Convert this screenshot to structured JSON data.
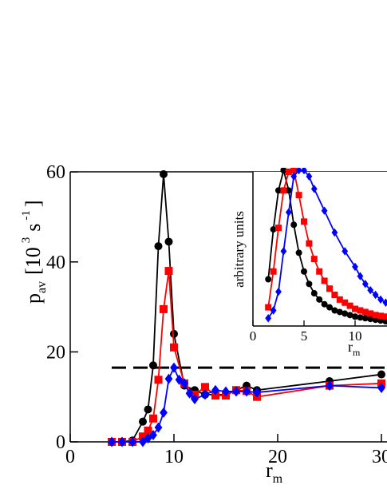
{
  "chart_data": [
    {
      "type": "line",
      "xlabel": "r",
      "xlabel_sub": "m",
      "ylabel": "p",
      "ylabel_sub": "av",
      "ylabel_unit": "[10",
      "ylabel_exp": "3",
      "ylabel_unit2": "s",
      "ylabel_exp2": "-1",
      "ylabel_close": "]",
      "xlim": [
        0,
        30
      ],
      "ylim": [
        0,
        60
      ],
      "xticks": [
        0,
        10,
        20,
        30
      ],
      "xtick_labels": [
        "0",
        "10",
        "20",
        "30"
      ],
      "yticks": [
        0,
        20,
        40,
        60
      ],
      "ytick_labels": [
        "0",
        "20",
        "40",
        "60"
      ],
      "reference_line": {
        "y": 16.5,
        "style": "dashed",
        "color": "#000000"
      },
      "series": [
        {
          "color": "#000000",
          "marker": "circle",
          "x": [
            4,
            5,
            6,
            7,
            7.5,
            8,
            8.5,
            9,
            9.5,
            10,
            11,
            12,
            13,
            14,
            15,
            16,
            17,
            18,
            25,
            30
          ],
          "y": [
            0,
            0,
            0.3,
            4.5,
            7.2,
            17,
            43.5,
            59.5,
            44.5,
            24,
            12.5,
            11.5,
            10.5,
            10.5,
            10.5,
            11.5,
            12.5,
            11.5,
            13.5,
            15
          ]
        },
        {
          "color": "#ff0000",
          "marker": "square",
          "x": [
            4,
            5,
            6,
            7,
            7.5,
            8,
            8.5,
            9,
            9.5,
            10,
            11,
            12,
            13,
            14,
            15,
            16,
            17,
            18,
            25,
            30
          ],
          "y": [
            0,
            0,
            0,
            1.2,
            2.5,
            5.2,
            13.8,
            29.5,
            38,
            21,
            13,
            10.5,
            12.2,
            10.3,
            10.3,
            11.5,
            11.3,
            10,
            12.5,
            13
          ]
        },
        {
          "color": "#0000ff",
          "marker": "diamond",
          "x": [
            4,
            5,
            6,
            7,
            7.5,
            8,
            8.5,
            9,
            9.5,
            10,
            10.5,
            11,
            11.5,
            12,
            13,
            14,
            15,
            16,
            17,
            18,
            25,
            30
          ],
          "y": [
            0,
            0,
            0,
            0,
            0.8,
            1.5,
            3.2,
            6.5,
            14,
            16.5,
            13.8,
            13,
            10.8,
            9.5,
            10.5,
            11.5,
            11.2,
            11.2,
            11.2,
            11,
            12.5,
            12
          ]
        }
      ]
    },
    {
      "type": "line",
      "xlabel": "r",
      "xlabel_sub": "m",
      "ylabel": "arbitrary units",
      "xlim": [
        0,
        14
      ],
      "ylim": [
        0,
        1
      ],
      "xticks": [
        0,
        5,
        10
      ],
      "xtick_labels": [
        "0",
        "5",
        "10"
      ],
      "series": [
        {
          "color": "#000000",
          "marker": "circle",
          "x": [
            1.5,
            2,
            2.5,
            3,
            3.5,
            4,
            4.5,
            5,
            5.5,
            6,
            6.5,
            7,
            7.5,
            8,
            8.5,
            9,
            9.5,
            10,
            10.5,
            11,
            11.5,
            12,
            12.5,
            13,
            13.5,
            14
          ],
          "y": [
            0.3,
            0.62,
            0.87,
            1.0,
            0.87,
            0.65,
            0.47,
            0.35,
            0.27,
            0.21,
            0.17,
            0.14,
            0.12,
            0.1,
            0.09,
            0.08,
            0.07,
            0.06,
            0.055,
            0.05,
            0.045,
            0.04,
            0.035,
            0.03,
            0.03,
            0.025
          ]
        },
        {
          "color": "#ff0000",
          "marker": "square",
          "x": [
            1.5,
            2,
            2.5,
            3,
            3.5,
            4,
            4.5,
            5,
            5.5,
            6,
            6.5,
            7,
            7.5,
            8,
            8.5,
            9,
            9.5,
            10,
            10.5,
            11,
            11.5,
            12,
            12.5,
            13,
            13.5,
            14
          ],
          "y": [
            0.12,
            0.35,
            0.63,
            0.87,
            0.99,
            1.0,
            0.84,
            0.67,
            0.53,
            0.43,
            0.35,
            0.29,
            0.24,
            0.2,
            0.17,
            0.15,
            0.13,
            0.11,
            0.1,
            0.09,
            0.08,
            0.07,
            0.065,
            0.06,
            0.055,
            0.05
          ]
        },
        {
          "color": "#0000ff",
          "marker": "diamond",
          "x": [
            1.5,
            2,
            2.5,
            3,
            3.5,
            4,
            4.5,
            5,
            5.5,
            6,
            7,
            8,
            9,
            10,
            10.5,
            11,
            11.5,
            12,
            12.5,
            13,
            13.5,
            14
          ],
          "y": [
            0.05,
            0.1,
            0.22,
            0.48,
            0.73,
            0.96,
            1.0,
            1.0,
            0.96,
            0.88,
            0.74,
            0.6,
            0.48,
            0.38,
            0.32,
            0.27,
            0.23,
            0.2,
            0.17,
            0.15,
            0.13,
            0.12
          ]
        }
      ]
    }
  ]
}
